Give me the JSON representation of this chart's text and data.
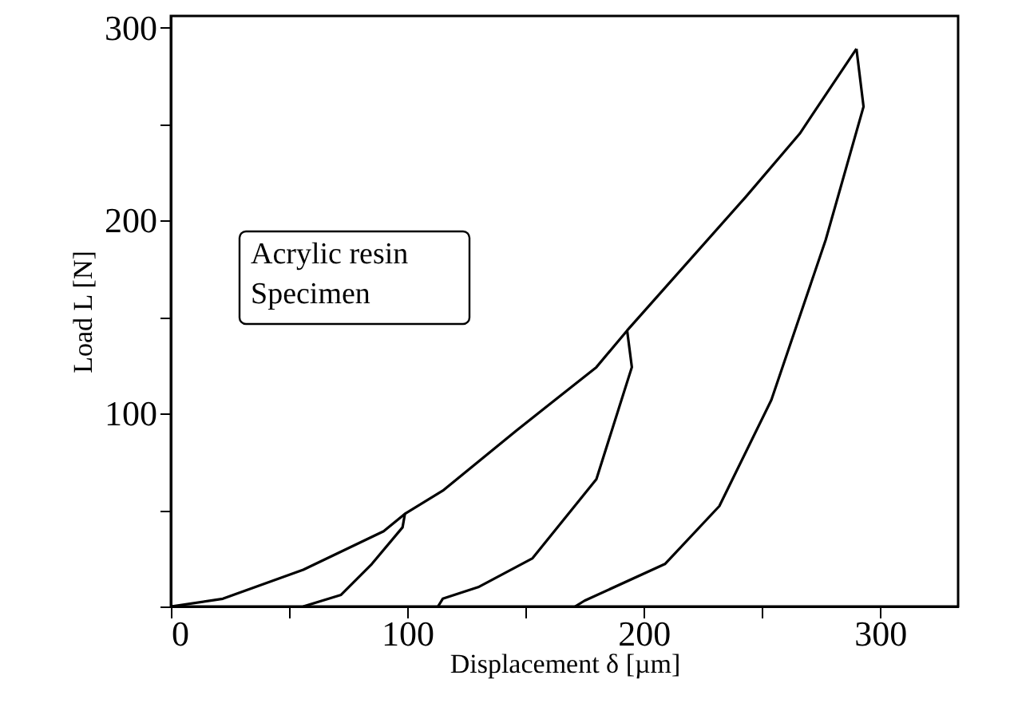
{
  "chart_data": {
    "type": "line",
    "xlabel": "Displacement δ [µm]",
    "ylabel": "Load L  [N]",
    "series": [
      {
        "color": "#000000",
        "x": [
          0,
          22,
          56,
          90,
          99,
          115,
          146,
          180,
          193,
          243,
          266,
          290
        ],
        "values": [
          0,
          4,
          19,
          39,
          48,
          60,
          91,
          124,
          143,
          212,
          245,
          289
        ]
      },
      {
        "color": "#000000",
        "x": [
          99,
          98,
          85,
          72,
          56
        ],
        "values": [
          48,
          41,
          22,
          6,
          0
        ]
      },
      {
        "color": "#000000",
        "x": [
          193,
          195,
          180,
          153,
          130,
          115,
          113
        ],
        "values": [
          143,
          124,
          66,
          25,
          10,
          4,
          0
        ]
      },
      {
        "color": "#000000",
        "x": [
          290,
          293,
          277,
          254,
          232,
          209,
          175,
          171
        ],
        "values": [
          289,
          259,
          190,
          107,
          52,
          22,
          3,
          0
        ]
      }
    ],
    "annotations": [
      "Acrylic resin\nSpecimen"
    ],
    "xlim": [
      0,
      333
    ],
    "ylim": [
      0,
      306
    ],
    "xticks": [
      0,
      {
        "value": 50,
        "label": null
      },
      100,
      {
        "value": 150,
        "label": null
      },
      200,
      {
        "value": 250,
        "label": null
      },
      300
    ],
    "yticks": [
      {
        "value": 0,
        "label": null
      },
      {
        "value": 50,
        "label": null
      },
      100,
      {
        "value": 150,
        "label": null
      },
      200,
      {
        "value": 250,
        "label": null
      },
      300
    ],
    "grid": false,
    "marker": "none",
    "line_style": "solid"
  }
}
